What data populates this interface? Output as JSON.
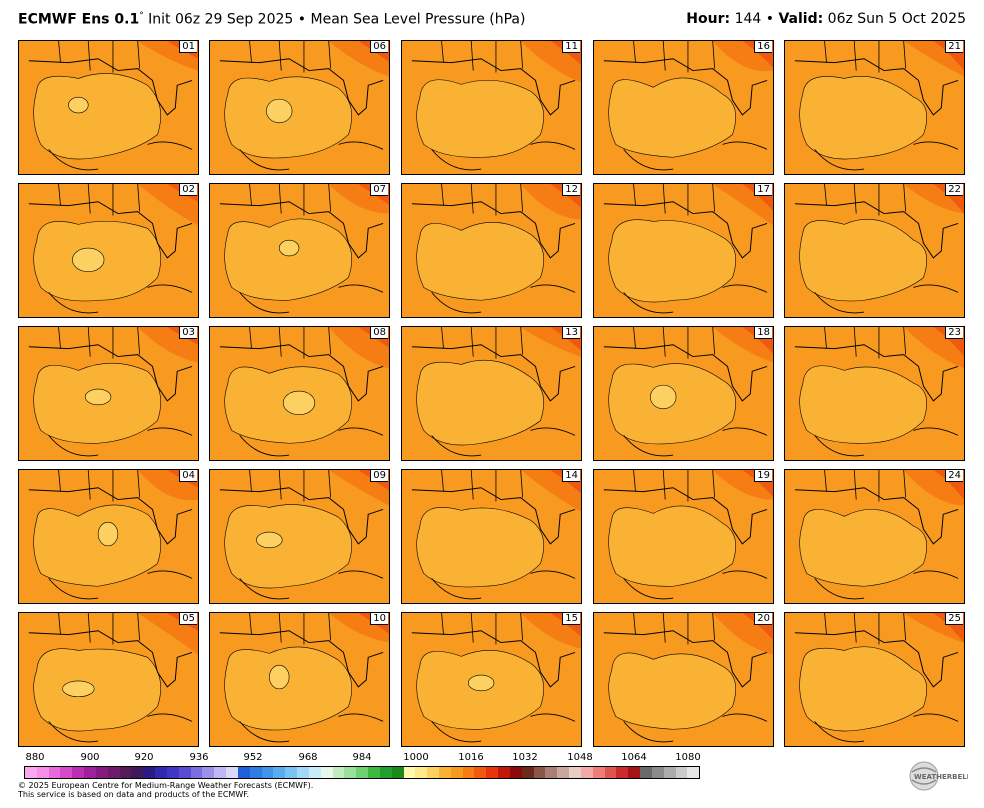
{
  "header": {
    "model": "ECMWF Ens 0.1",
    "degree": "°",
    "init": "Init 06z 29 Sep 2025",
    "bullet": "•",
    "field": "Mean Sea Level Pressure (hPa)",
    "hour_label": "Hour:",
    "hour_value": "144",
    "valid_label": "Valid:",
    "valid_value": "06z Sun 5 Oct 2025"
  },
  "members": [
    "01",
    "06",
    "11",
    "16",
    "21",
    "02",
    "07",
    "12",
    "17",
    "22",
    "03",
    "08",
    "13",
    "18",
    "23",
    "04",
    "09",
    "14",
    "19",
    "24",
    "05",
    "10",
    "15",
    "20",
    "25"
  ],
  "colorbar": {
    "colors": [
      "#f9a8f0",
      "#f58ee8",
      "#e86bd9",
      "#d54ac9",
      "#bd2db3",
      "#a0209a",
      "#861a80",
      "#6e1a6a",
      "#561a56",
      "#3e1a5a",
      "#2a1a86",
      "#2d2ab0",
      "#4035c5",
      "#5a4bd3",
      "#7a6de0",
      "#9c91ea",
      "#bfb7f2",
      "#dcd8f8",
      "#1f5fd9",
      "#2f7be3",
      "#3f94ea",
      "#5aacf0",
      "#7cc3f5",
      "#a3d8f8",
      "#c9ecfb",
      "#e6f7ec",
      "#c2ecbd",
      "#9be09a",
      "#6fd06f",
      "#3fb83f",
      "#1f9f2f",
      "#1a8a1a",
      "#fffab0",
      "#ffe88a",
      "#fdd161",
      "#f9b233",
      "#f79a1f",
      "#f57d14",
      "#f05a0e",
      "#e6340d",
      "#c2160b",
      "#8c0a0a",
      "#6b2a1a",
      "#8a5648",
      "#aa7e72",
      "#c9a79d",
      "#e6cdc6",
      "#f3aaa6",
      "#ec7f7a",
      "#e05450",
      "#cc2b2b",
      "#a31414",
      "#6a6a6a",
      "#8a8a8a",
      "#ababab",
      "#cacaca",
      "#e6e6e6"
    ],
    "tick_labels": [
      "880",
      "900",
      "920",
      "936",
      "952",
      "968",
      "984",
      "1000",
      "1016",
      "1032",
      "1048",
      "1064",
      "1080"
    ]
  },
  "footer": {
    "line1": "© 2025 European Centre for Medium-Range Weather Forecasts (ECMWF).",
    "line2": "This service is based on data and products of the ECMWF."
  },
  "logo": {
    "text": "WEATHERBELL",
    "icon": "weatherbell-logo-icon"
  },
  "map_colors": {
    "land_north": "#f57d14",
    "mid": "#f79a1f",
    "gulf": "#f9b233",
    "high_center": "#fdd161",
    "far_north": "#f05a0e"
  }
}
